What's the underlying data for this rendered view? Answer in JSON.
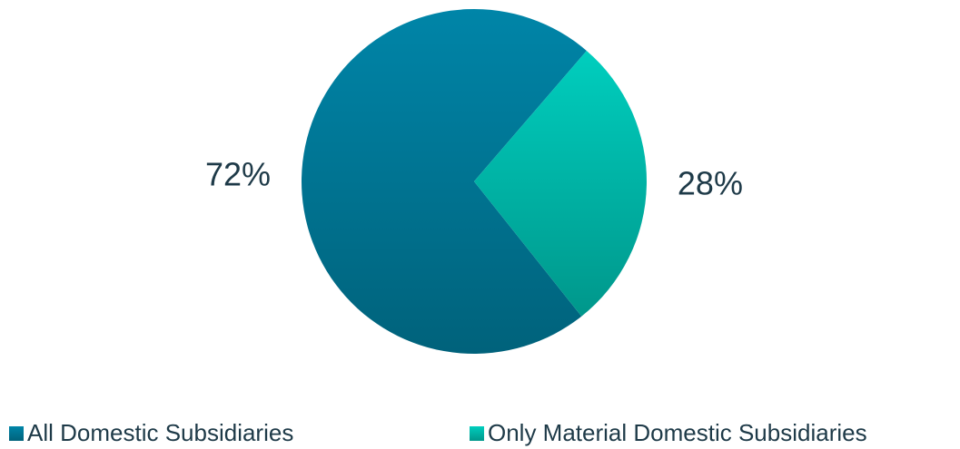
{
  "chart_data": {
    "type": "pie",
    "categories": [
      "All Domestic Subsidiaries",
      "Only Material Domestic Subsidiaries"
    ],
    "values": [
      72,
      28
    ],
    "value_labels": [
      "72%",
      "28%"
    ],
    "colors": [
      "#007796",
      "#00b8aa"
    ],
    "legend": "bottom"
  }
}
